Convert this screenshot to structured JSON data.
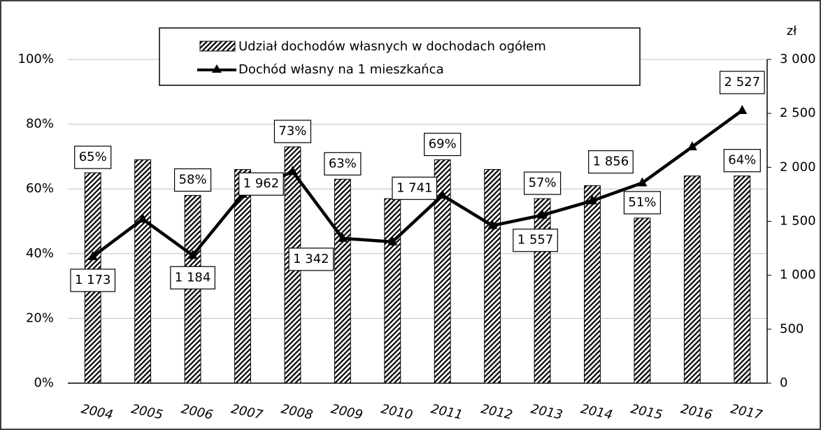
{
  "chart_data": {
    "type": "bar",
    "y2_label": "zł",
    "categories": [
      "2004",
      "2005",
      "2006",
      "2007",
      "2008",
      "2009",
      "2010",
      "2011",
      "2012",
      "2013",
      "2014",
      "2015",
      "2016",
      "2017"
    ],
    "series": [
      {
        "name": "Udział dochodów własnych w dochodach ogółem",
        "type": "bar",
        "color": "#000000",
        "values": [
          65,
          69,
          58,
          66,
          73,
          63,
          57,
          69,
          66,
          57,
          61,
          51,
          64,
          64
        ],
        "value_labels": [
          "65%",
          null,
          "58%",
          null,
          "73%",
          "63%",
          null,
          "69%",
          null,
          "57%",
          null,
          "51%",
          null,
          "64%"
        ]
      },
      {
        "name": "Dochód własny na 1 mieszkańca",
        "type": "line",
        "axis": "y2",
        "color": "#000000",
        "values": [
          1173,
          1520,
          1184,
          1750,
          1962,
          1342,
          1310,
          1741,
          1460,
          1557,
          1690,
          1856,
          2190,
          2527
        ],
        "value_labels": [
          "1 173",
          null,
          "1 184",
          null,
          "1 962",
          "1 342",
          null,
          "1 741",
          null,
          "1 557",
          null,
          "1 856",
          null,
          "2 527"
        ]
      }
    ],
    "ylim": [
      0,
      100
    ],
    "yticks": [
      {
        "value": 0,
        "label": "0%"
      },
      {
        "value": 20,
        "label": "20%"
      },
      {
        "value": 40,
        "label": "40%"
      },
      {
        "value": 60,
        "label": "60%"
      },
      {
        "value": 80,
        "label": "80%"
      },
      {
        "value": 100,
        "label": "100%"
      }
    ],
    "y2lim": [
      0,
      3000
    ],
    "y2ticks": [
      0,
      500,
      {
        "value": 1000,
        "label": "1 000"
      },
      {
        "value": 1500,
        "label": "1 500"
      },
      {
        "value": 2000,
        "label": "2 000"
      },
      {
        "value": 2500,
        "label": "2 500"
      },
      {
        "value": 3000,
        "label": "3 000"
      }
    ],
    "grid": true
  }
}
